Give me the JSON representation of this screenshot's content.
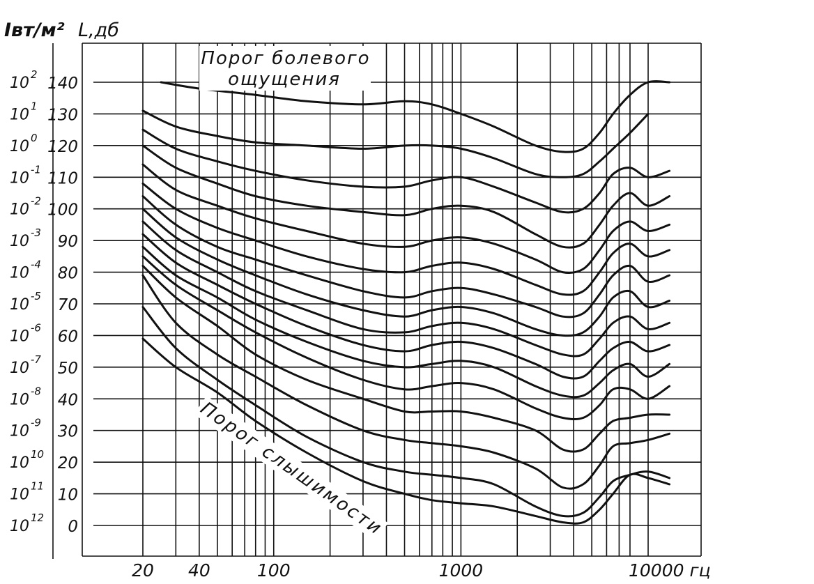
{
  "chart_data": {
    "type": "line",
    "x_scale": "log",
    "y_scale": "linear",
    "grid": true,
    "legend": "none",
    "line_color": "#111111",
    "x_tick_labels": [
      "20",
      "40",
      "100",
      "1000",
      "10000 гц"
    ],
    "x_ticks": [
      20,
      40,
      100,
      1000,
      10000
    ],
    "y_label_left": "Iвт/м²",
    "y_label_right": "L,дб",
    "y_ticks": [
      0,
      10,
      20,
      30,
      40,
      50,
      60,
      70,
      80,
      90,
      100,
      110,
      120,
      130,
      140
    ],
    "y_tick_labels": [
      "0",
      "10",
      "20",
      "30",
      "40",
      "50",
      "60",
      "70",
      "80",
      "90",
      "100",
      "110",
      "120",
      "130",
      "140"
    ],
    "intensity_ticks": [
      {
        "base": "10",
        "exp": "12"
      },
      {
        "base": "10",
        "exp": "11"
      },
      {
        "base": "10",
        "exp": "10"
      },
      {
        "base": "10",
        "exp": "-9"
      },
      {
        "base": "10",
        "exp": "-8"
      },
      {
        "base": "10",
        "exp": "-7"
      },
      {
        "base": "10",
        "exp": "-6"
      },
      {
        "base": "10",
        "exp": "-5"
      },
      {
        "base": "10",
        "exp": "-4"
      },
      {
        "base": "10",
        "exp": "-3"
      },
      {
        "base": "10",
        "exp": "-2"
      },
      {
        "base": "10",
        "exp": "-1"
      },
      {
        "base": "10",
        "exp": "0"
      },
      {
        "base": "10",
        "exp": "1"
      },
      {
        "base": "10",
        "exp": "2"
      }
    ],
    "annotations": {
      "pain_threshold": [
        "Порог болевого",
        "ощущения"
      ],
      "hearing_threshold": "Порог слышимости"
    },
    "series": [
      {
        "x": [
          20,
          30,
          50,
          80,
          150,
          300,
          500,
          700,
          1000,
          1500,
          2500,
          3500,
          4500,
          5500,
          6500,
          8000,
          10000,
          13000
        ],
        "y": [
          59,
          50,
          42,
          33,
          23,
          14,
          10,
          8,
          7,
          6,
          3,
          1,
          1,
          5,
          10,
          16,
          15,
          13
        ]
      },
      {
        "x": [
          20,
          30,
          50,
          80,
          150,
          300,
          500,
          700,
          1000,
          1500,
          2500,
          3500,
          4500,
          5500,
          6500,
          8000,
          10000,
          13000
        ],
        "y": [
          69,
          56,
          46,
          38,
          28,
          20,
          17,
          16,
          15,
          13,
          6,
          3,
          4,
          9,
          14,
          16,
          17,
          15
        ]
      },
      {
        "x": [
          20,
          30,
          50,
          80,
          150,
          300,
          500,
          700,
          1000,
          1500,
          2500,
          3500,
          4500,
          5500,
          6500,
          8000,
          10000,
          13000
        ],
        "y": [
          79,
          64,
          54,
          47,
          38,
          30,
          27,
          26,
          25,
          23,
          18,
          12,
          13,
          19,
          25,
          26,
          27,
          29
        ]
      },
      {
        "x": [
          20,
          30,
          50,
          80,
          150,
          300,
          500,
          700,
          1000,
          1500,
          2500,
          3500,
          4500,
          5500,
          6500,
          8000,
          10000,
          13000
        ],
        "y": [
          82,
          72,
          63,
          54,
          46,
          40,
          36,
          36,
          36,
          34,
          30,
          24,
          24,
          29,
          33,
          34,
          35,
          35
        ]
      },
      {
        "x": [
          20,
          30,
          50,
          80,
          150,
          300,
          500,
          700,
          1000,
          1500,
          2500,
          3500,
          4500,
          5500,
          6500,
          8000,
          10000,
          13000
        ],
        "y": [
          85,
          76,
          68,
          61,
          53,
          46,
          43,
          44,
          45,
          43,
          37,
          34,
          34,
          38,
          43,
          43,
          40,
          44
        ]
      },
      {
        "x": [
          20,
          30,
          50,
          80,
          150,
          300,
          500,
          700,
          1000,
          1500,
          2500,
          3500,
          4500,
          5500,
          6500,
          8000,
          10000,
          13000
        ],
        "y": [
          88,
          79,
          72,
          65,
          58,
          52,
          50,
          51,
          52,
          50,
          44,
          41,
          41,
          45,
          49,
          51,
          47,
          51
        ]
      },
      {
        "x": [
          20,
          30,
          50,
          80,
          150,
          300,
          500,
          700,
          1000,
          1500,
          2500,
          3500,
          4500,
          5500,
          6500,
          8000,
          10000,
          13000
        ],
        "y": [
          92,
          83,
          76,
          70,
          63,
          57,
          55,
          57,
          58,
          56,
          51,
          47,
          47,
          52,
          56,
          58,
          55,
          57
        ]
      },
      {
        "x": [
          20,
          30,
          50,
          80,
          150,
          300,
          500,
          700,
          1000,
          1500,
          2500,
          3500,
          4500,
          5500,
          6500,
          8000,
          10000,
          13000
        ],
        "y": [
          96,
          87,
          80,
          74,
          68,
          62,
          61,
          63,
          64,
          62,
          57,
          54,
          54,
          59,
          64,
          66,
          62,
          64
        ]
      },
      {
        "x": [
          20,
          30,
          50,
          80,
          150,
          300,
          500,
          700,
          1000,
          1500,
          2500,
          3500,
          4500,
          5500,
          6500,
          8000,
          10000,
          13000
        ],
        "y": [
          100,
          91,
          84,
          79,
          73,
          68,
          66,
          68,
          69,
          67,
          62,
          60,
          61,
          66,
          72,
          74,
          69,
          71
        ]
      },
      {
        "x": [
          20,
          30,
          50,
          80,
          150,
          300,
          500,
          700,
          1000,
          1500,
          2500,
          3500,
          4500,
          5500,
          6500,
          8000,
          10000,
          13000
        ],
        "y": [
          104,
          95,
          88,
          84,
          79,
          74,
          72,
          74,
          75,
          73,
          69,
          66,
          67,
          73,
          79,
          82,
          77,
          79
        ]
      },
      {
        "x": [
          20,
          30,
          50,
          80,
          150,
          300,
          500,
          700,
          1000,
          1500,
          2500,
          3500,
          4500,
          5500,
          6500,
          8000,
          10000,
          13000
        ],
        "y": [
          108,
          100,
          94,
          90,
          85,
          81,
          80,
          82,
          83,
          81,
          76,
          73,
          74,
          80,
          86,
          89,
          85,
          87
        ]
      },
      {
        "x": [
          20,
          30,
          50,
          80,
          150,
          300,
          500,
          700,
          1000,
          1500,
          2500,
          3500,
          4500,
          5500,
          6500,
          8000,
          10000,
          13000
        ],
        "y": [
          114,
          106,
          101,
          97,
          93,
          89,
          88,
          90,
          91,
          89,
          84,
          80,
          81,
          87,
          93,
          96,
          93,
          95
        ]
      },
      {
        "x": [
          20,
          30,
          50,
          80,
          150,
          300,
          500,
          700,
          1000,
          1500,
          2500,
          3500,
          4500,
          5500,
          6500,
          8000,
          10000,
          13000
        ],
        "y": [
          120,
          113,
          108,
          104,
          101,
          99,
          98,
          100,
          101,
          99,
          92,
          88,
          89,
          95,
          101,
          105,
          101,
          104
        ]
      },
      {
        "x": [
          20,
          30,
          50,
          80,
          150,
          300,
          500,
          700,
          1000,
          1500,
          2500,
          3500,
          4500,
          5500,
          6500,
          8000,
          10000,
          13000
        ],
        "y": [
          125,
          119,
          115,
          112,
          109,
          107,
          107,
          109,
          110,
          107,
          102,
          99,
          100,
          105,
          111,
          113,
          110,
          112
        ]
      },
      {
        "x": [
          20,
          30,
          50,
          80,
          150,
          300,
          500,
          700,
          1000,
          1500,
          2500,
          3500,
          4500,
          5500,
          6500,
          8000,
          10000
        ],
        "y": [
          131,
          126,
          123,
          121,
          120,
          119,
          120,
          120,
          119,
          116,
          111,
          110,
          111,
          115,
          119,
          124,
          130
        ]
      },
      {
        "x": [
          25,
          40,
          80,
          150,
          300,
          500,
          700,
          1000,
          1500,
          2500,
          3500,
          4500,
          5500,
          6500,
          8000,
          10000,
          13000
        ],
        "y": [
          140,
          138,
          136,
          134,
          133,
          134,
          133,
          130,
          126,
          120,
          118,
          119,
          124,
          130,
          136,
          140,
          140
        ]
      }
    ]
  }
}
